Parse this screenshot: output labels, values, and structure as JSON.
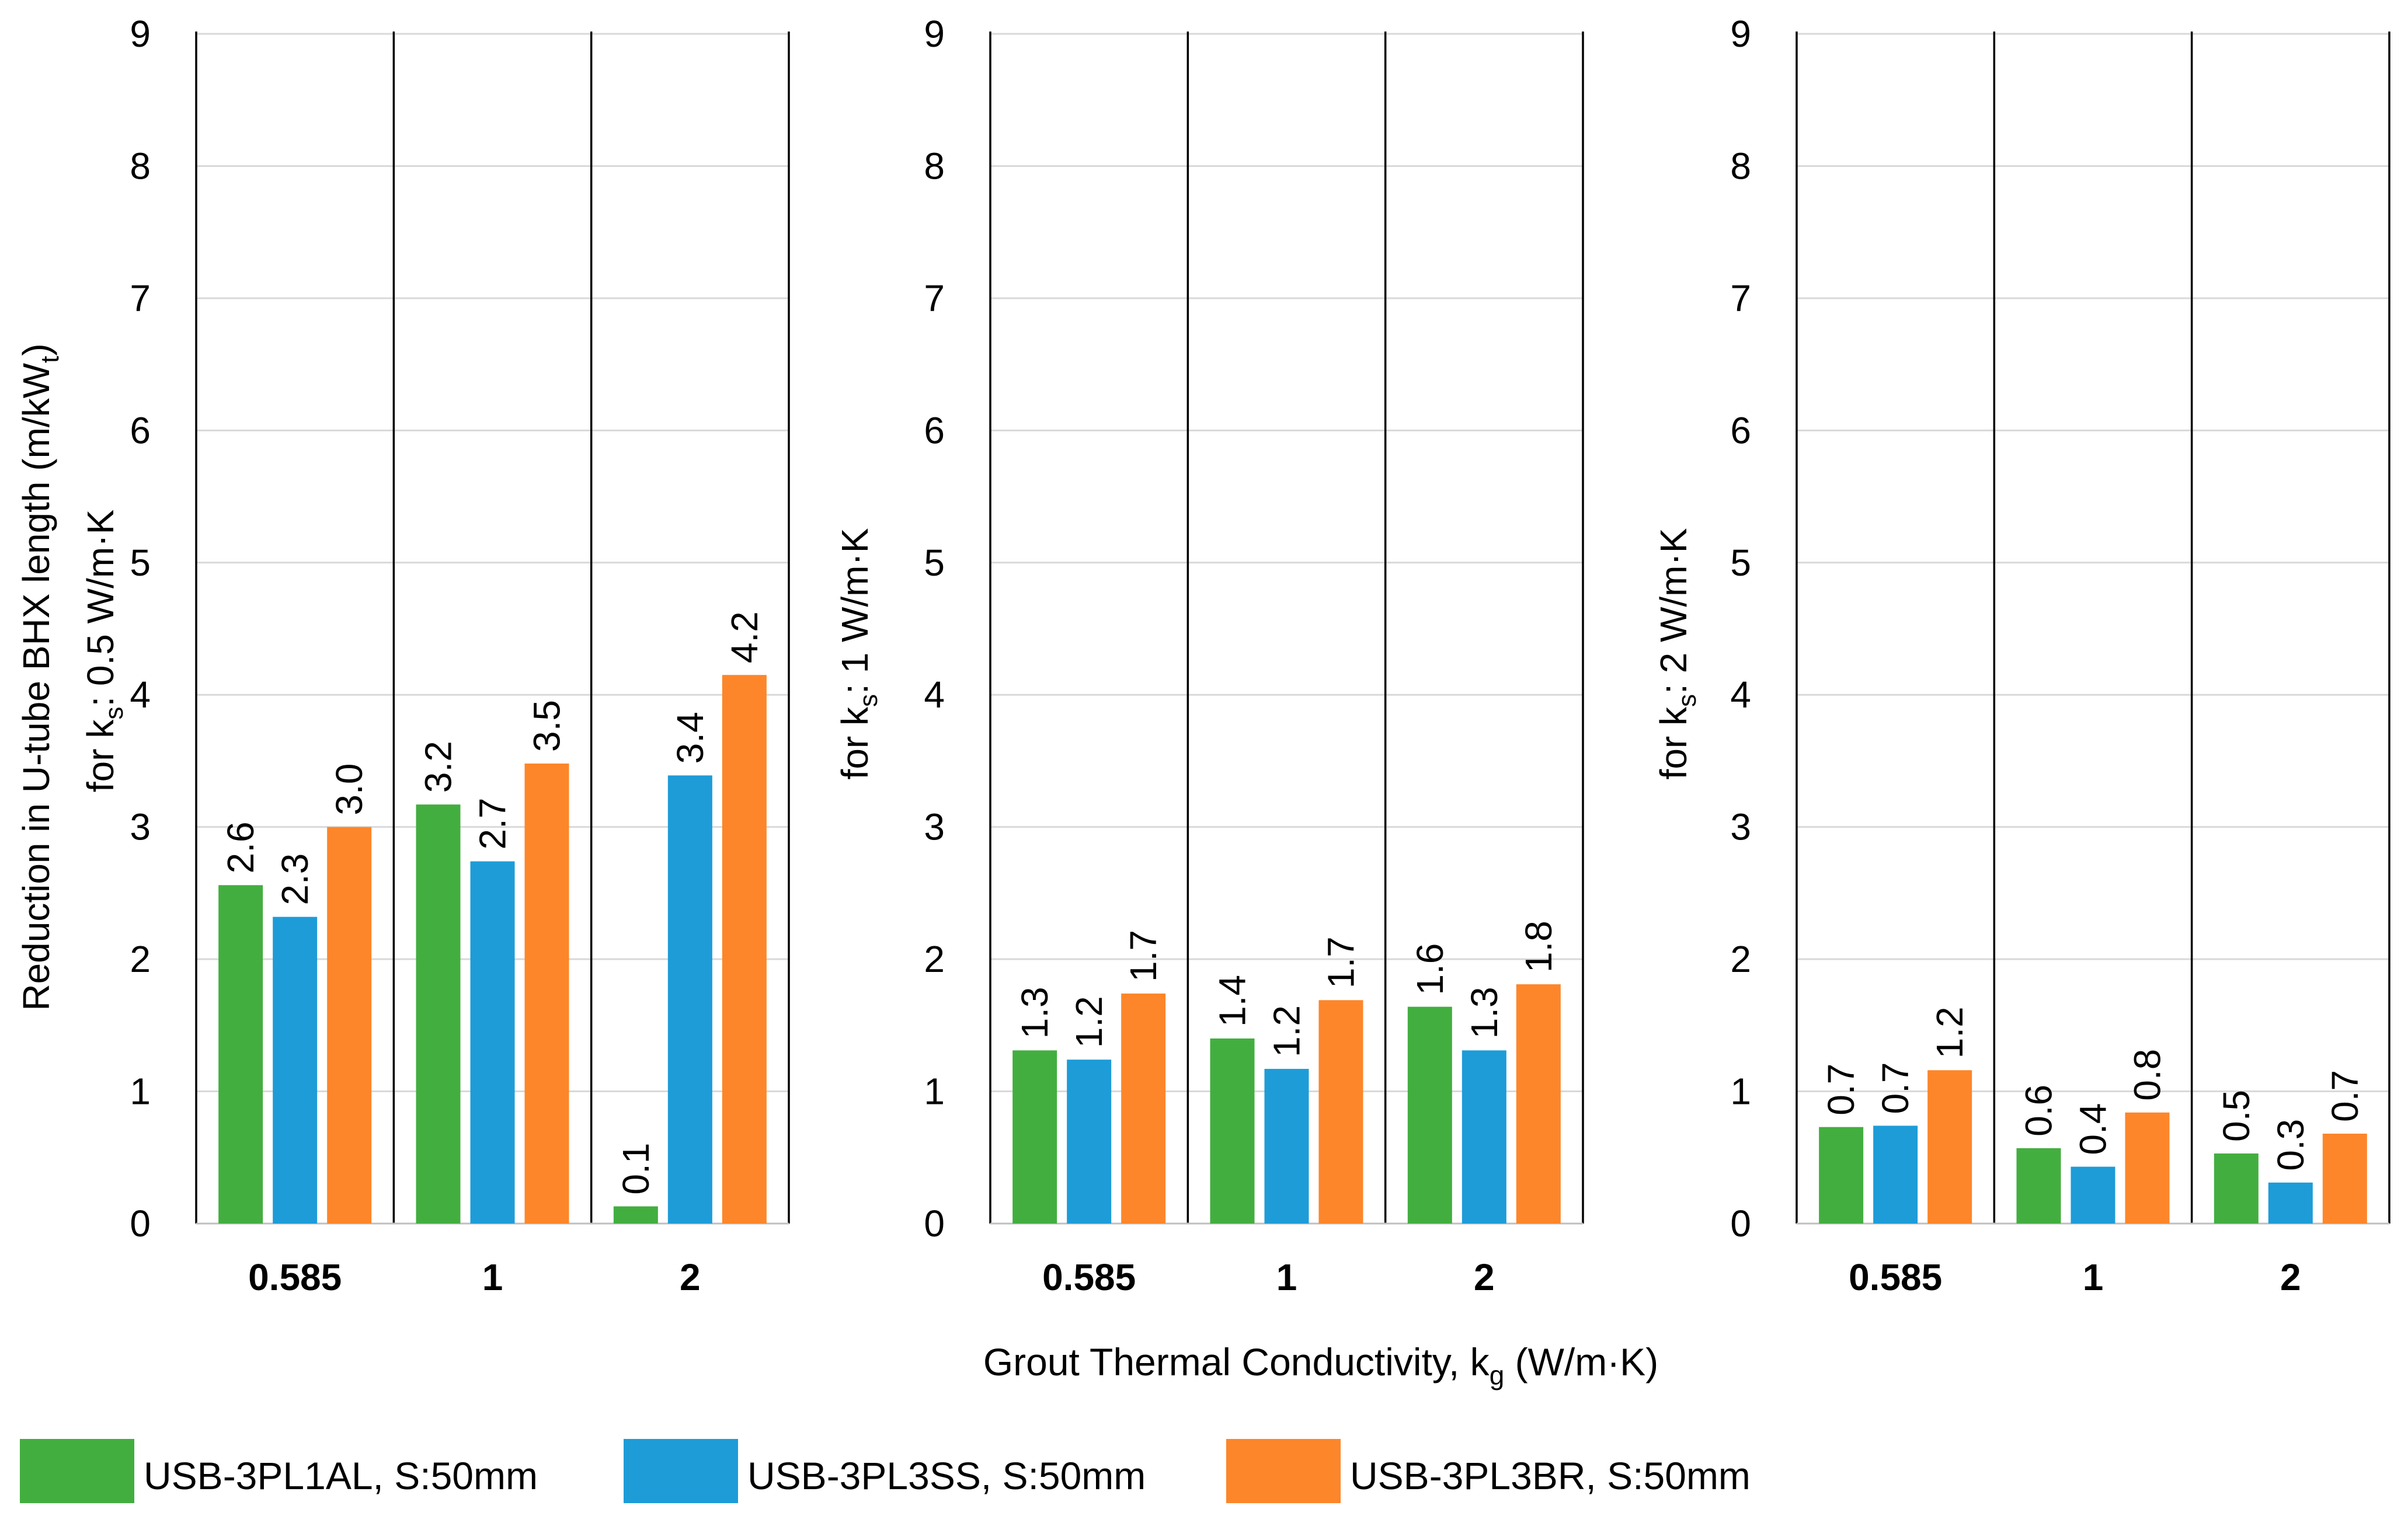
{
  "chart_data": {
    "type": "bar",
    "xlabel": "Grout Thermal Conductivity, k",
    "xlabel_sub": "g",
    "xlabel_tail": " (W/m·K)",
    "ylabel_main": "Reduction in U-tube BHX length (m/kW",
    "ylabel_main_sub": "t",
    "ylabel_main_tail": ")",
    "ylim": [
      0,
      9
    ],
    "yticks": [
      "0",
      "1",
      "2",
      "3",
      "4",
      "5",
      "6",
      "7",
      "8",
      "9"
    ],
    "grid": true,
    "categories": [
      "0.585",
      "1",
      "2"
    ],
    "legend_position": "bottom-left",
    "colors": [
      "#43ae40",
      "#1e9cd8",
      "#fd862a"
    ],
    "legend": [
      "USB-3PL1AL, S:50mm",
      "USB-3PL3SS, S:50mm",
      "USB-3PL3BR, S:50mm"
    ],
    "panels": [
      {
        "ylabel": "for k",
        "ylabel_sub": "s",
        "ylabel_tail": ": 0.5 W/m·K",
        "series": [
          {
            "name": "USB-3PL1AL, S:50mm",
            "values": [
              2.56,
              3.17,
              0.13
            ],
            "labels": [
              "2.6",
              "3.2",
              "0.1"
            ]
          },
          {
            "name": "USB-3PL3SS, S:50mm",
            "values": [
              2.32,
              2.74,
              3.39
            ],
            "labels": [
              "2.3",
              "2.7",
              "3.4"
            ]
          },
          {
            "name": "USB-3PL3BR, S:50mm",
            "values": [
              3.0,
              3.48,
              4.15
            ],
            "labels": [
              "3.0",
              "3.5",
              "4.2"
            ]
          }
        ]
      },
      {
        "ylabel": "for k",
        "ylabel_sub": "s",
        "ylabel_tail": ": 1 W/m·K",
        "series": [
          {
            "name": "USB-3PL1AL, S:50mm",
            "values": [
              1.31,
              1.4,
              1.64
            ],
            "labels": [
              "1.3",
              "1.4",
              "1.6"
            ]
          },
          {
            "name": "USB-3PL3SS, S:50mm",
            "values": [
              1.24,
              1.17,
              1.31
            ],
            "labels": [
              "1.2",
              "1.2",
              "1.3"
            ]
          },
          {
            "name": "USB-3PL3BR, S:50mm",
            "values": [
              1.74,
              1.69,
              1.81
            ],
            "labels": [
              "1.7",
              "1.7",
              "1.8"
            ]
          }
        ]
      },
      {
        "ylabel": "for k",
        "ylabel_sub": "s",
        "ylabel_tail": ": 2 W/m·K",
        "series": [
          {
            "name": "USB-3PL1AL, S:50mm",
            "values": [
              0.73,
              0.57,
              0.53
            ],
            "labels": [
              "0.7",
              "0.6",
              "0.5"
            ]
          },
          {
            "name": "USB-3PL3SS, S:50mm",
            "values": [
              0.74,
              0.43,
              0.31
            ],
            "labels": [
              "0.7",
              "0.4",
              "0.3"
            ]
          },
          {
            "name": "USB-3PL3BR, S:50mm",
            "values": [
              1.16,
              0.84,
              0.68
            ],
            "labels": [
              "1.2",
              "0.8",
              "0.7"
            ]
          }
        ]
      }
    ]
  }
}
